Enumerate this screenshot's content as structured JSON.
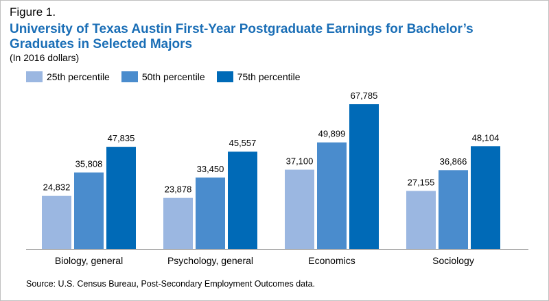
{
  "figure_label": "Figure 1.",
  "title": "University of Texas Austin First-Year Postgraduate Earnings for Bachelor’s Graduates in Selected Majors",
  "subtitle": "(In 2016 dollars)",
  "source": "Source: U.S. Census Bureau, Post-Secondary Employment Outcomes data.",
  "chart_data": {
    "type": "bar",
    "categories": [
      "Biology, general",
      "Psychology, general",
      "Economics",
      "Sociology"
    ],
    "series": [
      {
        "name": "25th percentile",
        "color": "#9bb7e1",
        "values": [
          24832,
          23878,
          37100,
          27155
        ],
        "labels": [
          "24,832",
          "23,878",
          "37,100",
          "27,155"
        ]
      },
      {
        "name": "50th percentile",
        "color": "#4a8ccd",
        "values": [
          35808,
          33450,
          49899,
          36866
        ],
        "labels": [
          "35,808",
          "33,450",
          "49,899",
          "36,866"
        ]
      },
      {
        "name": "75th percentile",
        "color": "#006ab7",
        "values": [
          47835,
          45557,
          67785,
          48104
        ],
        "labels": [
          "47,835",
          "45,557",
          "67,785",
          "48,104"
        ]
      }
    ],
    "ylim": [
      0,
      67785
    ],
    "legend_position": "top-left",
    "grid": false
  }
}
